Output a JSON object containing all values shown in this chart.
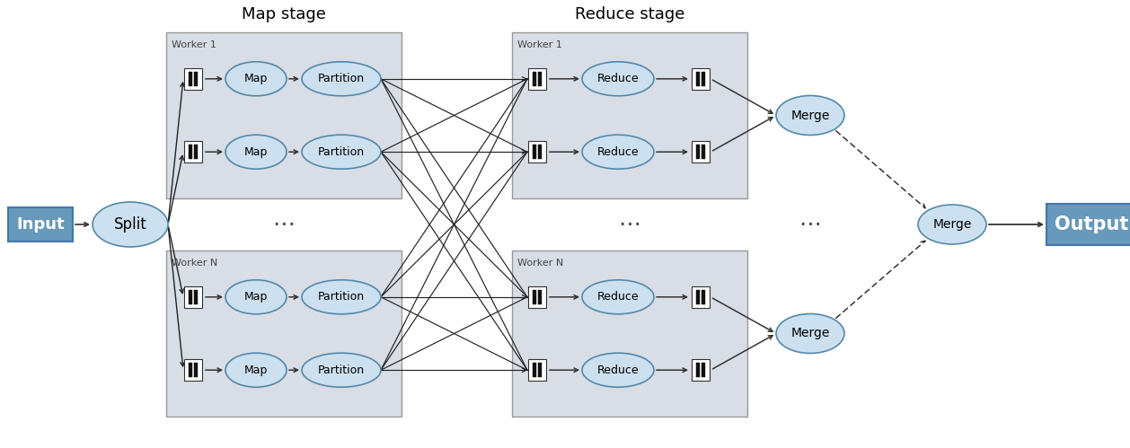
{
  "bg_color": "#ffffff",
  "worker_box_fill": "#d8dde6",
  "worker_box_edge": "#999999",
  "ellipse_fill": "#cce0f0",
  "ellipse_edge": "#5588aa",
  "rect_fill": "#6699bb",
  "rect_edge": "#4477aa",
  "map_stage_label": "Map stage",
  "reduce_stage_label": "Reduce stage",
  "worker1_label": "Worker 1",
  "workerN_label": "Worker N",
  "input_label": "Input",
  "output_label": "Output",
  "split_label": "Split",
  "merge_label": "Merge",
  "map_label": "Map",
  "partition_label": "Partition",
  "reduce_label": "Reduce",
  "dots": "⋯"
}
